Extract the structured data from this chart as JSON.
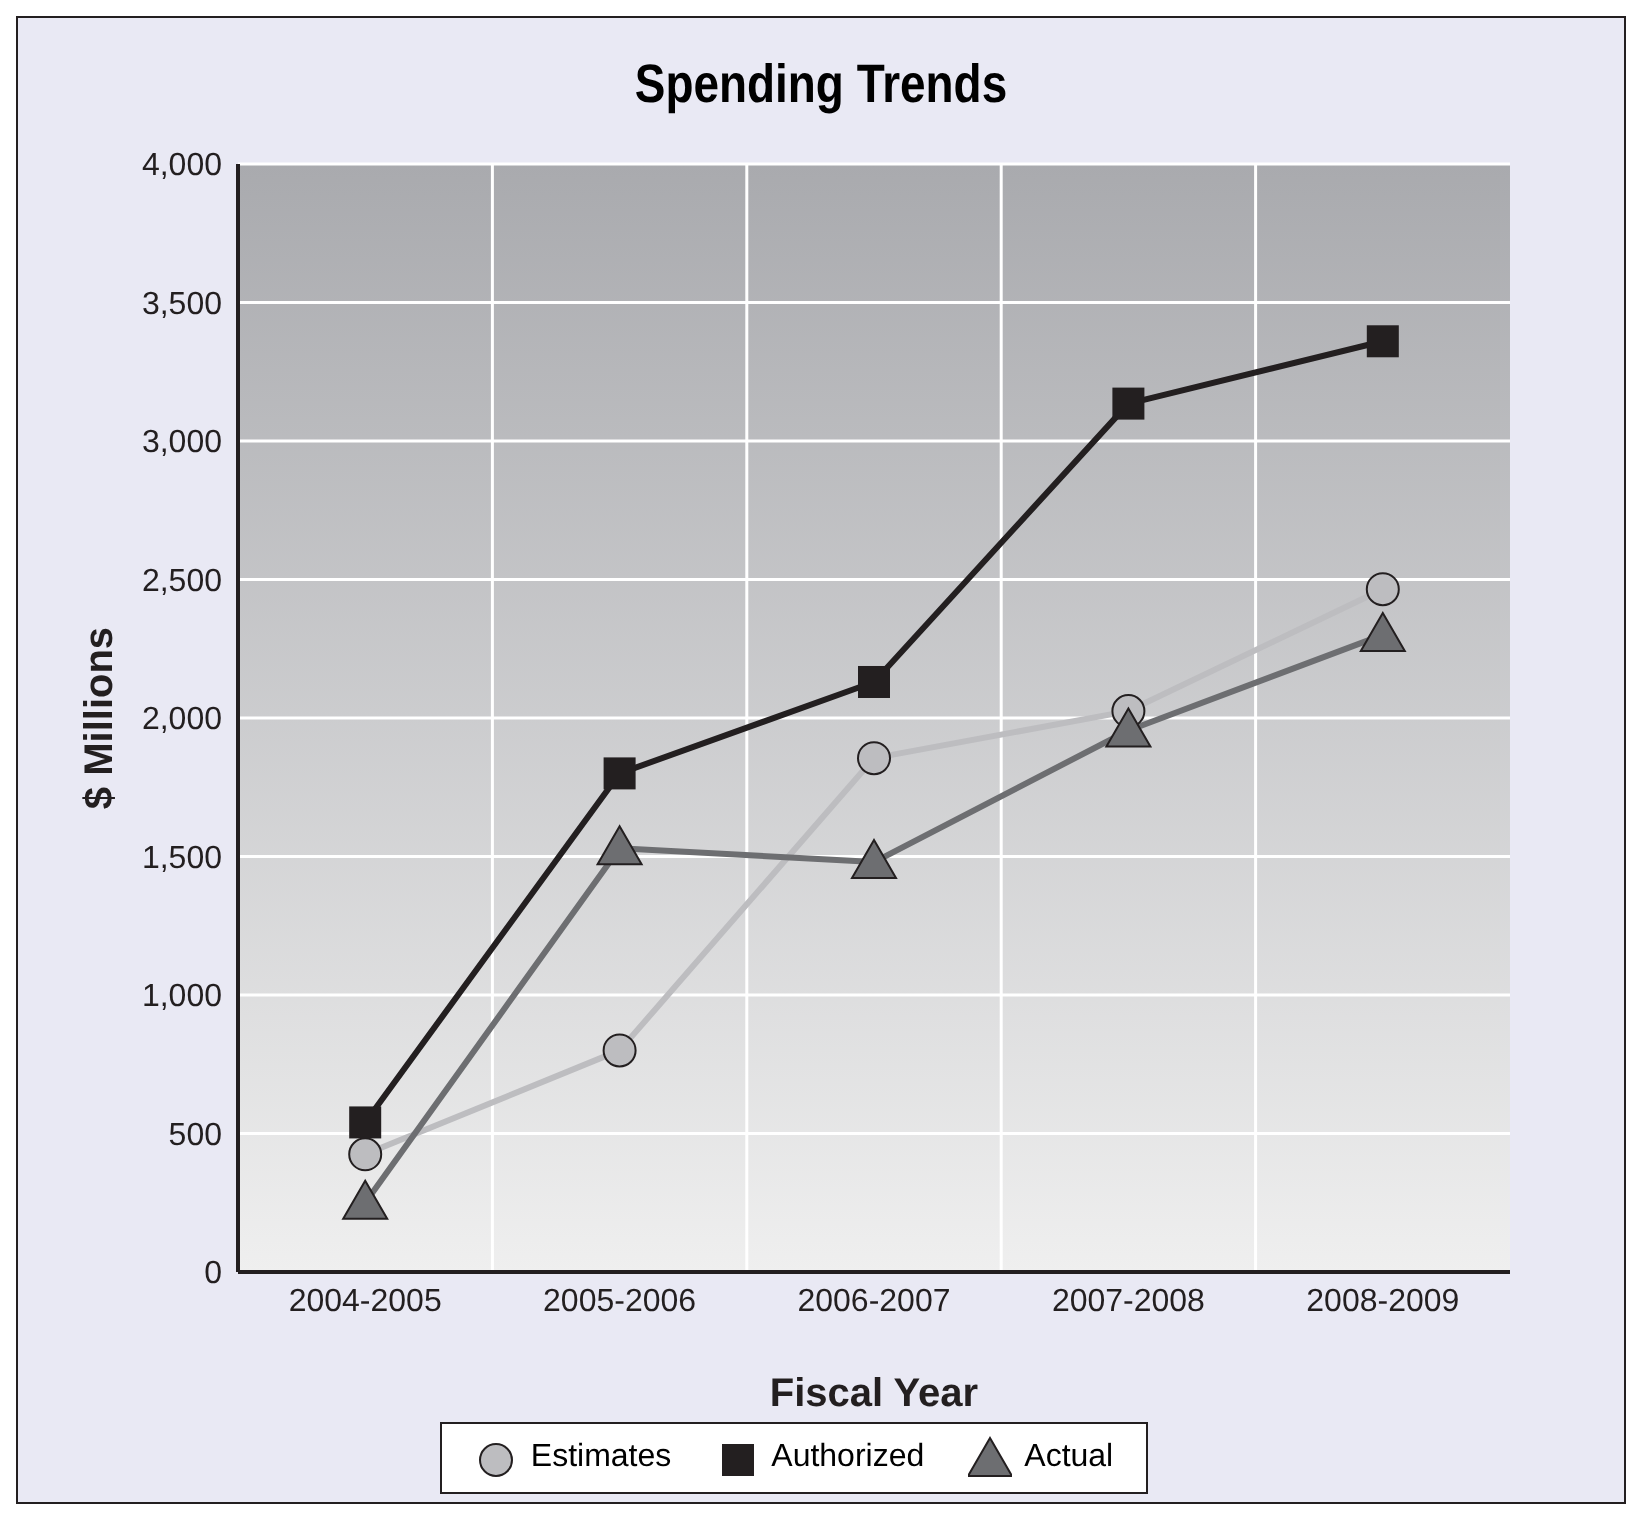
{
  "chart_data": {
    "type": "line",
    "title": "Spending Trends",
    "xlabel": "Fiscal Year",
    "ylabel": "$ Millions",
    "categories": [
      "2004-2005",
      "2005-2006",
      "2006-2007",
      "2007-2008",
      "2008-2009"
    ],
    "series": [
      {
        "name": "Estimates",
        "color": "#bdbdc0",
        "marker": "circle",
        "values": [
          425,
          800,
          1855,
          2025,
          2465
        ]
      },
      {
        "name": "Authorized",
        "color": "#231f20",
        "marker": "square",
        "values": [
          540,
          1800,
          2130,
          3135,
          3360
        ]
      },
      {
        "name": "Actual",
        "color": "#6d6e71",
        "marker": "triangle",
        "values": [
          250,
          1530,
          1480,
          1955,
          2300
        ]
      }
    ],
    "ylim": [
      0,
      4000
    ],
    "yticks": [
      0,
      500,
      {
        "value": 1000,
        "label": "1,000"
      },
      {
        "value": 1500,
        "label": "1,500"
      },
      {
        "value": 2000,
        "label": "2,000"
      },
      {
        "value": 2500,
        "label": "2,500"
      },
      {
        "value": 3000,
        "label": "3,000"
      },
      {
        "value": 3500,
        "label": "3,500"
      },
      {
        "value": 4000,
        "label": "4,000"
      }
    ],
    "grid": true,
    "legend": "bottom",
    "line_style": "solid"
  }
}
